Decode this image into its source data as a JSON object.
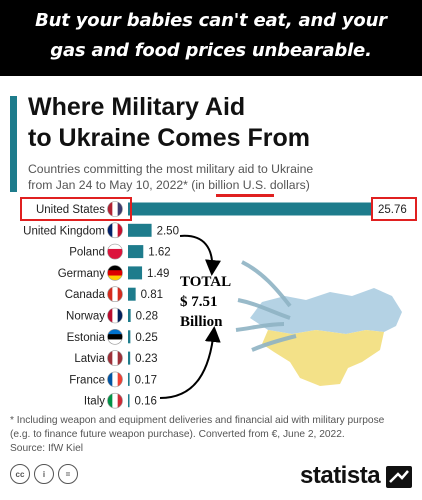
{
  "banner": {
    "line1": "But your babies can't eat, and your",
    "line2": "gas and food prices unbearable."
  },
  "chart_data": {
    "type": "bar",
    "orientation": "horizontal",
    "title": "Where Military Aid to Ukraine Comes From",
    "title_line1": "Where Military Aid",
    "title_line2": "to Ukraine Comes From",
    "subtitle_line1": "Countries committing the most military aid to Ukraine",
    "subtitle_line2": "from Jan 24 to May 10, 2022* (in billion U.S. dollars)",
    "categories": [
      "United States",
      "United Kingdom",
      "Poland",
      "Germany",
      "Canada",
      "Norway",
      "Estonia",
      "Latvia",
      "France",
      "Italy"
    ],
    "values": [
      25.76,
      2.5,
      1.62,
      1.49,
      0.81,
      0.28,
      0.25,
      0.23,
      0.17,
      0.16
    ],
    "value_labels": [
      "25.76",
      "2.50",
      "1.62",
      "1.49",
      "0.81",
      "0.28",
      "0.25",
      "0.23",
      "0.17",
      "0.16"
    ],
    "bar_color": "#1e7c8c",
    "xlim": [
      0,
      25.76
    ],
    "highlight_color": "#e02020"
  },
  "annotation": {
    "total_line1": "TOTAL",
    "total_line2": "$ 7.51",
    "total_line3": "Billion"
  },
  "footnote": {
    "line1": "* Including weapon and equipment deliveries and financial aid with military purpose",
    "line2": "(e.g. to finance future weapon purchase). Converted from €, June 2, 2022.",
    "source": "Source: IfW Kiel"
  },
  "license_icons": [
    "cc-icon",
    "info-icon",
    "equals-icon"
  ],
  "license_labels": [
    "cc",
    "i",
    "="
  ],
  "brand": "statista"
}
